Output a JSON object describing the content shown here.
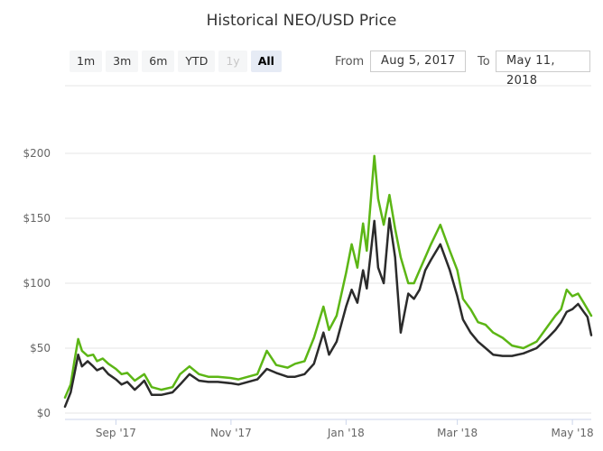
{
  "title": "Historical NEO/USD Price",
  "range_buttons": [
    {
      "label": "1m",
      "state": "normal"
    },
    {
      "label": "3m",
      "state": "normal"
    },
    {
      "label": "6m",
      "state": "normal"
    },
    {
      "label": "YTD",
      "state": "normal"
    },
    {
      "label": "1y",
      "state": "disabled"
    },
    {
      "label": "All",
      "state": "active"
    }
  ],
  "date_range": {
    "from_label": "From",
    "from_value": "Aug 5, 2017",
    "to_label": "To",
    "to_value": "May 11, 2018"
  },
  "colors": {
    "series_high": "#5cb615",
    "series_close": "#2b2b2b",
    "grid": "#e6e6e6"
  },
  "chart_data": {
    "type": "line",
    "title": "Historical NEO/USD Price",
    "x_range": [
      "2017-08-05",
      "2018-05-11"
    ],
    "ylim": [
      0,
      200
    ],
    "y_ticks": [
      {
        "value": 0,
        "label": "$0"
      },
      {
        "value": 50,
        "label": "$50"
      },
      {
        "value": 100,
        "label": "$100"
      },
      {
        "value": 150,
        "label": "$150"
      },
      {
        "value": 200,
        "label": "$200"
      }
    ],
    "x_ticks": [
      {
        "date": "2017-09-01",
        "label": "Sep '17"
      },
      {
        "date": "2017-11-01",
        "label": "Nov '17"
      },
      {
        "date": "2018-01-01",
        "label": "Jan '18"
      },
      {
        "date": "2018-03-01",
        "label": "Mar '18"
      },
      {
        "date": "2018-05-01",
        "label": "May '18"
      }
    ],
    "grid": "horizontal",
    "legend": "none",
    "series": [
      {
        "x": [
          "2017-08-05",
          "2017-08-08",
          "2017-08-10",
          "2017-08-12",
          "2017-08-14",
          "2017-08-17",
          "2017-08-20",
          "2017-08-22",
          "2017-08-25",
          "2017-08-28",
          "2017-09-01",
          "2017-09-04",
          "2017-09-07",
          "2017-09-11",
          "2017-09-14",
          "2017-09-16",
          "2017-09-20",
          "2017-09-25",
          "2017-10-01",
          "2017-10-05",
          "2017-10-10",
          "2017-10-15",
          "2017-10-20",
          "2017-10-25",
          "2017-11-01",
          "2017-11-05",
          "2017-11-10",
          "2017-11-15",
          "2017-11-20",
          "2017-11-25",
          "2017-12-01",
          "2017-12-05",
          "2017-12-10",
          "2017-12-15",
          "2017-12-20",
          "2017-12-23",
          "2017-12-27",
          "2018-01-01",
          "2018-01-04",
          "2018-01-07",
          "2018-01-10",
          "2018-01-12",
          "2018-01-16",
          "2018-01-18",
          "2018-01-21",
          "2018-01-24",
          "2018-01-27",
          "2018-01-30",
          "2018-02-03",
          "2018-02-06",
          "2018-02-09",
          "2018-02-12",
          "2018-02-15",
          "2018-02-20",
          "2018-02-25",
          "2018-03-01",
          "2018-03-04",
          "2018-03-08",
          "2018-03-12",
          "2018-03-16",
          "2018-03-20",
          "2018-03-25",
          "2018-03-30",
          "2018-04-05",
          "2018-04-12",
          "2018-04-18",
          "2018-04-22",
          "2018-04-25",
          "2018-04-28",
          "2018-05-01",
          "2018-05-04",
          "2018-05-07",
          "2018-05-09",
          "2018-05-11"
        ],
        "values": [
          12,
          22,
          40,
          57,
          48,
          44,
          45,
          40,
          42,
          38,
          34,
          30,
          31,
          25,
          28,
          30,
          20,
          18,
          20,
          30,
          36,
          30,
          28,
          28,
          27,
          26,
          28,
          30,
          48,
          37,
          35,
          38,
          40,
          58,
          82,
          64,
          75,
          108,
          130,
          112,
          146,
          125,
          198,
          165,
          145,
          168,
          142,
          120,
          100,
          100,
          110,
          120,
          130,
          145,
          125,
          110,
          88,
          80,
          70,
          68,
          62,
          58,
          52,
          50,
          55,
          67,
          75,
          80,
          95,
          90,
          92,
          85,
          80,
          75
        ]
      },
      {
        "x": [
          "2017-08-05",
          "2017-08-08",
          "2017-08-10",
          "2017-08-12",
          "2017-08-14",
          "2017-08-17",
          "2017-08-20",
          "2017-08-22",
          "2017-08-25",
          "2017-08-28",
          "2017-09-01",
          "2017-09-04",
          "2017-09-07",
          "2017-09-11",
          "2017-09-14",
          "2017-09-16",
          "2017-09-20",
          "2017-09-25",
          "2017-10-01",
          "2017-10-05",
          "2017-10-10",
          "2017-10-15",
          "2017-10-20",
          "2017-10-25",
          "2017-11-01",
          "2017-11-05",
          "2017-11-10",
          "2017-11-15",
          "2017-11-20",
          "2017-11-25",
          "2017-12-01",
          "2017-12-05",
          "2017-12-10",
          "2017-12-15",
          "2017-12-20",
          "2017-12-23",
          "2017-12-27",
          "2018-01-01",
          "2018-01-04",
          "2018-01-07",
          "2018-01-10",
          "2018-01-12",
          "2018-01-16",
          "2018-01-18",
          "2018-01-21",
          "2018-01-24",
          "2018-01-27",
          "2018-01-30",
          "2018-02-03",
          "2018-02-06",
          "2018-02-09",
          "2018-02-12",
          "2018-02-15",
          "2018-02-20",
          "2018-02-25",
          "2018-03-01",
          "2018-03-04",
          "2018-03-08",
          "2018-03-12",
          "2018-03-16",
          "2018-03-20",
          "2018-03-25",
          "2018-03-30",
          "2018-04-05",
          "2018-04-12",
          "2018-04-18",
          "2018-04-22",
          "2018-04-25",
          "2018-04-28",
          "2018-05-01",
          "2018-05-04",
          "2018-05-07",
          "2018-05-09",
          "2018-05-11"
        ],
        "values": [
          5,
          16,
          30,
          45,
          36,
          40,
          36,
          33,
          35,
          30,
          26,
          22,
          24,
          18,
          22,
          25,
          14,
          14,
          16,
          22,
          30,
          25,
          24,
          24,
          23,
          22,
          24,
          26,
          34,
          31,
          28,
          28,
          30,
          38,
          62,
          45,
          55,
          82,
          95,
          85,
          110,
          96,
          148,
          112,
          100,
          150,
          120,
          62,
          92,
          88,
          95,
          110,
          118,
          130,
          110,
          90,
          72,
          62,
          55,
          50,
          45,
          44,
          44,
          46,
          50,
          58,
          64,
          70,
          78,
          80,
          84,
          78,
          74,
          60
        ]
      }
    ]
  }
}
